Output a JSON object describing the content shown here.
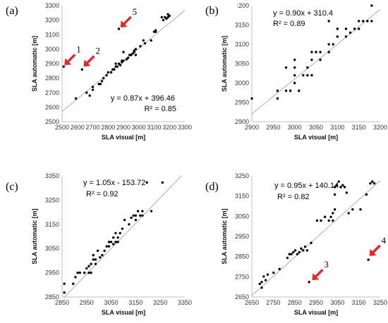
{
  "colors": {
    "point": "#000000",
    "trendline": "#9a9a9a",
    "arrow": "#e8262a",
    "axis": "#bfbfbf"
  },
  "chart_data": [
    {
      "panel_label": "(a)",
      "type": "scatter",
      "xlabel": "SLA visual [m]",
      "ylabel": "SLA automatic [m]",
      "xlim": [
        2500,
        3300
      ],
      "ylim": [
        2500,
        3300
      ],
      "xticks": [
        "2500",
        "2600",
        "2700",
        "2800",
        "2900",
        "3000",
        "3100",
        "3200",
        "3300"
      ],
      "yticks": [
        "2500",
        "2600",
        "2700",
        "2800",
        "2900",
        "3000",
        "3100",
        "3200",
        "3300"
      ],
      "grid": false,
      "equation": "y = 0.87x + 396.46",
      "r2": "R² = 0.85",
      "trend": {
        "slope": 0.87,
        "intercept": 396.46
      },
      "points": [
        [
          2510,
          2880
        ],
        [
          2630,
          2860
        ],
        [
          2590,
          2660
        ],
        [
          2660,
          2700
        ],
        [
          2680,
          2680
        ],
        [
          2700,
          2720
        ],
        [
          2700,
          2740
        ],
        [
          2740,
          2760
        ],
        [
          2750,
          2760
        ],
        [
          2760,
          2780
        ],
        [
          2770,
          2800
        ],
        [
          2790,
          2820
        ],
        [
          2800,
          2840
        ],
        [
          2820,
          2840
        ],
        [
          2830,
          2860
        ],
        [
          2840,
          2860
        ],
        [
          2850,
          2880
        ],
        [
          2850,
          2900
        ],
        [
          2860,
          2880
        ],
        [
          2870,
          2900
        ],
        [
          2880,
          2890
        ],
        [
          2890,
          2910
        ],
        [
          2890,
          2920
        ],
        [
          2900,
          2920
        ],
        [
          2900,
          2980
        ],
        [
          2920,
          2930
        ],
        [
          2930,
          2940
        ],
        [
          2940,
          2960
        ],
        [
          2950,
          2960
        ],
        [
          2960,
          2970
        ],
        [
          2970,
          2980
        ],
        [
          2970,
          2990
        ],
        [
          2980,
          2960
        ],
        [
          2980,
          3000
        ],
        [
          3010,
          3020
        ],
        [
          3030,
          3060
        ],
        [
          3040,
          3040
        ],
        [
          3080,
          3060
        ],
        [
          3100,
          3120
        ],
        [
          3110,
          3120
        ],
        [
          3110,
          3130
        ],
        [
          3150,
          3220
        ],
        [
          3160,
          3200
        ],
        [
          3170,
          3220
        ],
        [
          3180,
          3210
        ],
        [
          3190,
          3220
        ],
        [
          3190,
          3240
        ],
        [
          3200,
          3230
        ],
        [
          2870,
          3140
        ]
      ],
      "annotations": [
        {
          "text": "1",
          "target": [
            2515,
            2890
          ],
          "dir": "ne"
        },
        {
          "text": "2",
          "target": [
            2640,
            2880
          ],
          "dir": "ne"
        },
        {
          "text": "5",
          "target": [
            2880,
            3150
          ],
          "dir": "ne"
        }
      ]
    },
    {
      "panel_label": "(b)",
      "type": "scatter",
      "xlabel": "SLA visual [m]",
      "ylabel": "SLA automatic [m]",
      "xlim": [
        2900,
        3200
      ],
      "ylim": [
        2900,
        3200
      ],
      "xticks": [
        "2900",
        "2950",
        "3000",
        "3050",
        "3100",
        "3150",
        "3200"
      ],
      "yticks": [
        "2900",
        "2950",
        "3000",
        "3050",
        "3100",
        "3150",
        ":200"
      ],
      "grid": false,
      "equation": "y = 0.90x + 310.4",
      "r2": "R² = 0.89",
      "trend": {
        "slope": 0.9,
        "intercept": 310.4
      },
      "points": [
        [
          2900,
          2960
        ],
        [
          2960,
          2960
        ],
        [
          2960,
          2980
        ],
        [
          2980,
          2980
        ],
        [
          2980,
          3040
        ],
        [
          2990,
          2980
        ],
        [
          3000,
          3000
        ],
        [
          3000,
          3020
        ],
        [
          3000,
          3040
        ],
        [
          3000,
          3060
        ],
        [
          3010,
          2980
        ],
        [
          3020,
          3020
        ],
        [
          3030,
          3020
        ],
        [
          3030,
          3040
        ],
        [
          3040,
          3060
        ],
        [
          3040,
          3080
        ],
        [
          3040,
          3020
        ],
        [
          3050,
          3080
        ],
        [
          3060,
          3080
        ],
        [
          3060,
          3060
        ],
        [
          3080,
          3080
        ],
        [
          3080,
          3100
        ],
        [
          3080,
          3160
        ],
        [
          3090,
          3100
        ],
        [
          3100,
          3120
        ],
        [
          3100,
          3140
        ],
        [
          3120,
          3120
        ],
        [
          3120,
          3140
        ],
        [
          3130,
          3130
        ],
        [
          3140,
          3140
        ],
        [
          3150,
          3140
        ],
        [
          3150,
          3160
        ],
        [
          3160,
          3160
        ],
        [
          3170,
          3160
        ],
        [
          3180,
          3200
        ],
        [
          3180,
          3160
        ]
      ],
      "annotations": []
    },
    {
      "panel_label": "(c)",
      "type": "scatter",
      "xlabel": "SLA visual [m]",
      "ylabel": "SLA automatic [m]",
      "xlim": [
        2850,
        3400
      ],
      "ylim": [
        2850,
        3400
      ],
      "xticks": [
        "2850",
        "2950",
        "3050",
        "3150",
        "3250",
        "3350"
      ],
      "yticks": [
        "2850",
        "2950",
        "3050",
        "3150",
        "3250",
        "3350"
      ],
      "grid": false,
      "equation": "y = 1.05x - 153.72",
      "r2": "R² = 0.92",
      "trend": {
        "slope": 1.05,
        "intercept": -153.72
      },
      "points": [
        [
          2860,
          2870
        ],
        [
          2860,
          2910
        ],
        [
          2900,
          2910
        ],
        [
          2910,
          2940
        ],
        [
          2920,
          2960
        ],
        [
          2930,
          2960
        ],
        [
          2950,
          2960
        ],
        [
          2960,
          2980
        ],
        [
          2970,
          2960
        ],
        [
          2970,
          2990
        ],
        [
          2980,
          2960
        ],
        [
          2980,
          3000
        ],
        [
          2990,
          3020
        ],
        [
          2990,
          3040
        ],
        [
          3000,
          3000
        ],
        [
          3000,
          3020
        ],
        [
          3010,
          3060
        ],
        [
          3020,
          3030
        ],
        [
          3030,
          3040
        ],
        [
          3040,
          3060
        ],
        [
          3050,
          3080
        ],
        [
          3060,
          3080
        ],
        [
          3060,
          3100
        ],
        [
          3070,
          3100
        ],
        [
          3080,
          3090
        ],
        [
          3080,
          3120
        ],
        [
          3090,
          3100
        ],
        [
          3090,
          3140
        ],
        [
          3100,
          3100
        ],
        [
          3100,
          3120
        ],
        [
          3110,
          3140
        ],
        [
          3120,
          3160
        ],
        [
          3130,
          3200
        ],
        [
          3150,
          3180
        ],
        [
          3160,
          3210
        ],
        [
          3170,
          3220
        ],
        [
          3180,
          3220
        ],
        [
          3180,
          3200
        ],
        [
          3190,
          3240
        ],
        [
          3200,
          3220
        ],
        [
          3210,
          3240
        ],
        [
          3210,
          3220
        ],
        [
          3230,
          3370
        ],
        [
          3250,
          3240
        ],
        [
          3300,
          3370
        ]
      ],
      "annotations": []
    },
    {
      "panel_label": "(d)",
      "type": "scatter",
      "xlabel": "SLA visual [m]",
      "ylabel": "SLA automatic [m]",
      "xlim": [
        2650,
        3300
      ],
      "ylim": [
        2650,
        3300
      ],
      "xticks": [
        "2650",
        "2750",
        "2850",
        "2950",
        "3050",
        "3150",
        "3250"
      ],
      "yticks": [
        "2650",
        "2750",
        "2850",
        "2950",
        "3050",
        "3150",
        "3250"
      ],
      "grid": false,
      "equation": "y = 0.95x + 140.14",
      "r2": "R² = 0.82",
      "trend": {
        "slope": 0.95,
        "intercept": 140.14
      },
      "points": [
        [
          2690,
          2720
        ],
        [
          2700,
          2700
        ],
        [
          2700,
          2730
        ],
        [
          2710,
          2760
        ],
        [
          2720,
          2740
        ],
        [
          2730,
          2770
        ],
        [
          2760,
          2780
        ],
        [
          2790,
          2800
        ],
        [
          2830,
          2860
        ],
        [
          2840,
          2880
        ],
        [
          2850,
          2880
        ],
        [
          2860,
          2890
        ],
        [
          2870,
          2900
        ],
        [
          2880,
          2880
        ],
        [
          2890,
          2890
        ],
        [
          2900,
          2910
        ],
        [
          2910,
          2900
        ],
        [
          2920,
          2920
        ],
        [
          2930,
          2900
        ],
        [
          2940,
          2730
        ],
        [
          2950,
          2940
        ],
        [
          2980,
          3060
        ],
        [
          3000,
          3060
        ],
        [
          3020,
          3080
        ],
        [
          3040,
          3060
        ],
        [
          3050,
          3080
        ],
        [
          3060,
          3060
        ],
        [
          3060,
          3100
        ],
        [
          3070,
          3120
        ],
        [
          3070,
          3200
        ],
        [
          3070,
          3240
        ],
        [
          3080,
          3250
        ],
        [
          3090,
          3270
        ],
        [
          3100,
          3240
        ],
        [
          3110,
          3250
        ],
        [
          3120,
          3240
        ],
        [
          3130,
          3210
        ],
        [
          3140,
          3100
        ],
        [
          3160,
          3120
        ],
        [
          3200,
          3120
        ],
        [
          3230,
          3200
        ],
        [
          3250,
          3260
        ],
        [
          3260,
          3270
        ],
        [
          3270,
          3260
        ],
        [
          3240,
          2850
        ]
      ],
      "annotations": [
        {
          "text": "3",
          "target": [
            2955,
            2740
          ],
          "dir": "ne"
        },
        {
          "text": "4",
          "target": [
            3245,
            2870
          ],
          "dir": "ne"
        }
      ]
    }
  ]
}
